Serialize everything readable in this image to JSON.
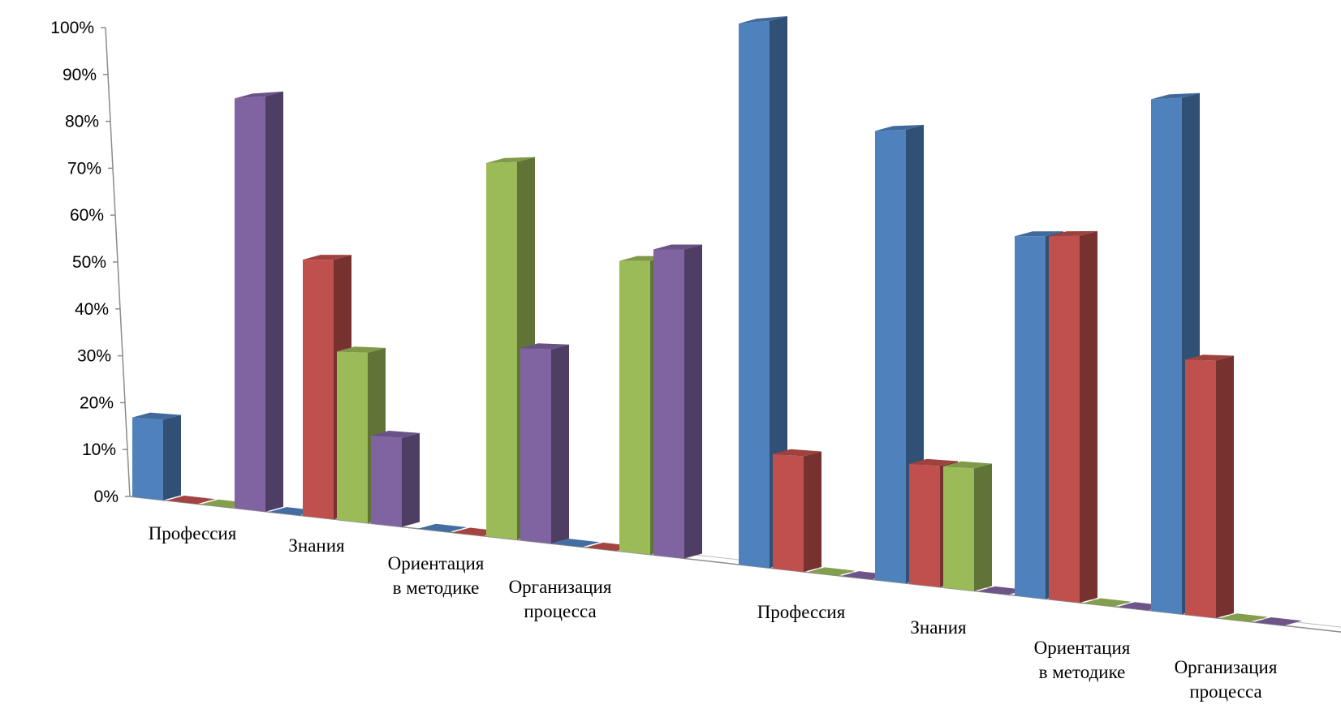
{
  "chart_data": {
    "type": "bar",
    "title": "",
    "xlabel": "",
    "ylabel": "",
    "ylim": [
      0,
      100
    ],
    "yticks": [
      "0%",
      "10%",
      "20%",
      "30%",
      "40%",
      "50%",
      "60%",
      "70%",
      "80%",
      "90%",
      "100%"
    ],
    "grid": false,
    "legend": "none",
    "groups": [
      {
        "categories": [
          {
            "label": [
              "Профессия"
            ],
            "values": [
              17,
              0,
              0,
              84
            ]
          },
          {
            "label": [
              "Знания"
            ],
            "values": [
              0,
              51,
              33,
              17
            ]
          },
          {
            "label": [
              "Ориентация",
              "в методике"
            ],
            "values": [
              0,
              0,
              69,
              35
            ]
          },
          {
            "label": [
              "Организация",
              "процесса"
            ],
            "values": [
              0,
              0,
              51,
              53
            ]
          }
        ]
      },
      {
        "categories": [
          {
            "label": [
              "Профессия"
            ],
            "values": [
              91,
              19,
              0,
              0
            ]
          },
          {
            "label": [
              "Знания"
            ],
            "values": [
              72,
              19,
              19,
              0
            ]
          },
          {
            "label": [
              "Ориентация",
              "в методике"
            ],
            "values": [
              55,
              55,
              0,
              0
            ]
          },
          {
            "label": [
              "Организация",
              "процесса"
            ],
            "values": [
              75,
              37,
              0,
              0
            ]
          }
        ]
      }
    ],
    "series_colors": [
      "#4F81BD",
      "#C0504D",
      "#9BBB59",
      "#8064A2"
    ]
  }
}
